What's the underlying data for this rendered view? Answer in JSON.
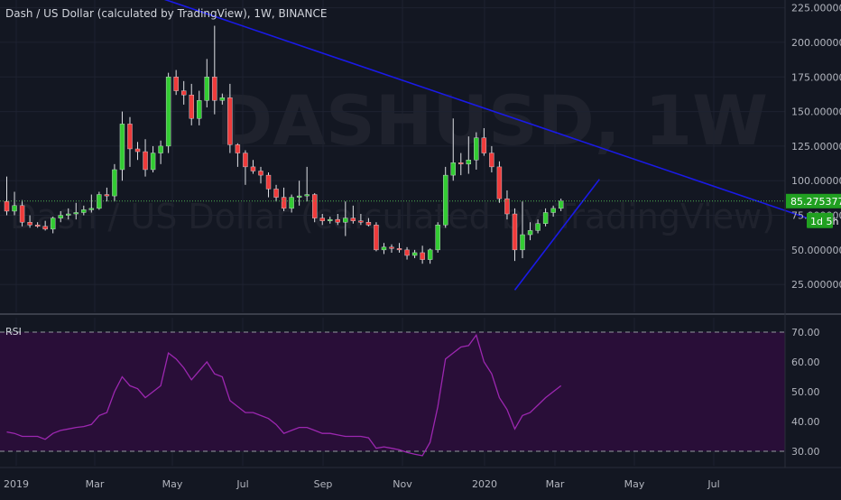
{
  "header": {
    "title": "Dash / US Dollar (calculated by TradingView), 1W, BINANCE",
    "watermark_symbol": "DASHUSD, 1W",
    "watermark_name": "Dash / US Dollar (calculated by TradingView)"
  },
  "colors": {
    "background": "#131722",
    "up": "#26a69a",
    "bull": "#33cc33",
    "bear": "#ef3b3b",
    "trendline": "#1a1ae6",
    "rsi_line": "#9c27b0",
    "rsi_band": "#2a0e3a",
    "price_line": "#4caf50",
    "price_badge": "#21a021"
  },
  "chart_data": [
    {
      "type": "candlestick",
      "symbol": "DASHUSD",
      "interval": "1W",
      "exchange": "BINANCE",
      "y_ticks": [
        "225.000000",
        "200.000000",
        "175.000000",
        "150.000000",
        "125.000000",
        "100.000000",
        "75.000000",
        "50.000000",
        "25.000000"
      ],
      "y_tick_values": [
        225,
        200,
        175,
        150,
        125,
        100,
        75,
        50,
        25
      ],
      "ylim": [
        10,
        235
      ],
      "x_ticks": [
        "2019",
        "Mar",
        "May",
        "Jul",
        "Sep",
        "Nov",
        "2020",
        "Mar",
        "May",
        "Jul"
      ],
      "last_price": "85.275377",
      "last_price_value": 85.275377,
      "countdown": "1d 5h",
      "candles": [
        {
          "o": 85,
          "h": 103,
          "l": 75,
          "c": 78
        },
        {
          "o": 78,
          "h": 92,
          "l": 75,
          "c": 82
        },
        {
          "o": 82,
          "h": 86,
          "l": 67,
          "c": 70
        },
        {
          "o": 70,
          "h": 75,
          "l": 66,
          "c": 68
        },
        {
          "o": 68,
          "h": 70,
          "l": 66,
          "c": 67
        },
        {
          "o": 67,
          "h": 71,
          "l": 64,
          "c": 65
        },
        {
          "o": 65,
          "h": 74,
          "l": 62,
          "c": 73
        },
        {
          "o": 73,
          "h": 78,
          "l": 70,
          "c": 75
        },
        {
          "o": 75,
          "h": 80,
          "l": 72,
          "c": 76
        },
        {
          "o": 76,
          "h": 84,
          "l": 72,
          "c": 77
        },
        {
          "o": 77,
          "h": 82,
          "l": 75,
          "c": 79
        },
        {
          "o": 79,
          "h": 90,
          "l": 77,
          "c": 80
        },
        {
          "o": 80,
          "h": 92,
          "l": 79,
          "c": 90
        },
        {
          "o": 90,
          "h": 95,
          "l": 85,
          "c": 89
        },
        {
          "o": 89,
          "h": 112,
          "l": 85,
          "c": 108
        },
        {
          "o": 108,
          "h": 150,
          "l": 100,
          "c": 141
        },
        {
          "o": 141,
          "h": 146,
          "l": 110,
          "c": 123
        },
        {
          "o": 123,
          "h": 128,
          "l": 115,
          "c": 121
        },
        {
          "o": 121,
          "h": 130,
          "l": 103,
          "c": 108
        },
        {
          "o": 108,
          "h": 125,
          "l": 106,
          "c": 120
        },
        {
          "o": 120,
          "h": 129,
          "l": 112,
          "c": 125
        },
        {
          "o": 125,
          "h": 178,
          "l": 120,
          "c": 175
        },
        {
          "o": 175,
          "h": 180,
          "l": 162,
          "c": 165
        },
        {
          "o": 165,
          "h": 172,
          "l": 155,
          "c": 162
        },
        {
          "o": 162,
          "h": 170,
          "l": 140,
          "c": 145
        },
        {
          "o": 145,
          "h": 165,
          "l": 140,
          "c": 158
        },
        {
          "o": 158,
          "h": 188,
          "l": 153,
          "c": 175
        },
        {
          "o": 175,
          "h": 212,
          "l": 148,
          "c": 158
        },
        {
          "o": 158,
          "h": 163,
          "l": 155,
          "c": 160
        },
        {
          "o": 160,
          "h": 170,
          "l": 120,
          "c": 126
        },
        {
          "o": 126,
          "h": 127,
          "l": 110,
          "c": 120
        },
        {
          "o": 120,
          "h": 122,
          "l": 97,
          "c": 110
        },
        {
          "o": 110,
          "h": 115,
          "l": 105,
          "c": 107
        },
        {
          "o": 107,
          "h": 110,
          "l": 98,
          "c": 104
        },
        {
          "o": 104,
          "h": 106,
          "l": 88,
          "c": 94
        },
        {
          "o": 94,
          "h": 97,
          "l": 85,
          "c": 88
        },
        {
          "o": 88,
          "h": 95,
          "l": 78,
          "c": 80
        },
        {
          "o": 80,
          "h": 90,
          "l": 77,
          "c": 88
        },
        {
          "o": 88,
          "h": 100,
          "l": 82,
          "c": 89
        },
        {
          "o": 89,
          "h": 110,
          "l": 85,
          "c": 90
        },
        {
          "o": 90,
          "h": 91,
          "l": 70,
          "c": 73
        },
        {
          "o": 73,
          "h": 76,
          "l": 68,
          "c": 71
        },
        {
          "o": 71,
          "h": 74,
          "l": 69,
          "c": 72
        },
        {
          "o": 72,
          "h": 76,
          "l": 68,
          "c": 70
        },
        {
          "o": 70,
          "h": 85,
          "l": 60,
          "c": 73
        },
        {
          "o": 73,
          "h": 82,
          "l": 69,
          "c": 71
        },
        {
          "o": 71,
          "h": 76,
          "l": 68,
          "c": 70
        },
        {
          "o": 70,
          "h": 73,
          "l": 67,
          "c": 68
        },
        {
          "o": 68,
          "h": 70,
          "l": 49,
          "c": 50
        },
        {
          "o": 50,
          "h": 55,
          "l": 47,
          "c": 52
        },
        {
          "o": 52,
          "h": 54,
          "l": 48,
          "c": 51
        },
        {
          "o": 51,
          "h": 55,
          "l": 48,
          "c": 50
        },
        {
          "o": 50,
          "h": 52,
          "l": 43,
          "c": 46
        },
        {
          "o": 46,
          "h": 50,
          "l": 44,
          "c": 48
        },
        {
          "o": 48,
          "h": 53,
          "l": 40,
          "c": 43
        },
        {
          "o": 43,
          "h": 51,
          "l": 40,
          "c": 50
        },
        {
          "o": 50,
          "h": 70,
          "l": 48,
          "c": 68
        },
        {
          "o": 68,
          "h": 110,
          "l": 66,
          "c": 104
        },
        {
          "o": 104,
          "h": 145,
          "l": 100,
          "c": 113
        },
        {
          "o": 113,
          "h": 120,
          "l": 104,
          "c": 112
        },
        {
          "o": 112,
          "h": 132,
          "l": 105,
          "c": 115
        },
        {
          "o": 115,
          "h": 135,
          "l": 108,
          "c": 131
        },
        {
          "o": 131,
          "h": 138,
          "l": 118,
          "c": 120
        },
        {
          "o": 120,
          "h": 125,
          "l": 106,
          "c": 110
        },
        {
          "o": 110,
          "h": 114,
          "l": 84,
          "c": 87
        },
        {
          "o": 87,
          "h": 93,
          "l": 72,
          "c": 76
        },
        {
          "o": 76,
          "h": 80,
          "l": 42,
          "c": 50
        },
        {
          "o": 50,
          "h": 85,
          "l": 44,
          "c": 61
        },
        {
          "o": 61,
          "h": 70,
          "l": 57,
          "c": 64
        },
        {
          "o": 64,
          "h": 72,
          "l": 62,
          "c": 69
        },
        {
          "o": 69,
          "h": 80,
          "l": 67,
          "c": 77
        },
        {
          "o": 77,
          "h": 82,
          "l": 74,
          "c": 80
        },
        {
          "o": 80,
          "h": 87,
          "l": 78,
          "c": 85.28
        }
      ],
      "trendlines": [
        {
          "name": "resistance",
          "points": [
            {
              "i": 20,
              "v": 232
            },
            {
              "i": 104,
              "v": 73
            }
          ]
        },
        {
          "name": "support",
          "points": [
            {
              "i": 66,
              "v": 21
            },
            {
              "i": 77,
              "v": 101
            }
          ]
        }
      ]
    },
    {
      "type": "line",
      "title": "RSI",
      "y_ticks": [
        "70.00",
        "60.00",
        "50.00",
        "40.00",
        "30.00"
      ],
      "y_tick_values": [
        70,
        60,
        50,
        40,
        30
      ],
      "ylim": [
        25,
        75
      ],
      "upper_band": 70,
      "lower_band": 30,
      "values": [
        36.5,
        36,
        35,
        35,
        35,
        34,
        36,
        37,
        37.5,
        38,
        38.3,
        39,
        42,
        43,
        50,
        55,
        52,
        51,
        48,
        50,
        52,
        63,
        61,
        58,
        54,
        57,
        60,
        56,
        55,
        47,
        45,
        43,
        43,
        42,
        41,
        39,
        36,
        37,
        38,
        38,
        37,
        36,
        36,
        35.5,
        35,
        35,
        35,
        34.5,
        31,
        31.5,
        31,
        30.5,
        29.6,
        29,
        28.5,
        33,
        45,
        61,
        63,
        65,
        65.5,
        69,
        60,
        56,
        48,
        44,
        37.5,
        42,
        43,
        45.5,
        48,
        50,
        52
      ]
    }
  ]
}
